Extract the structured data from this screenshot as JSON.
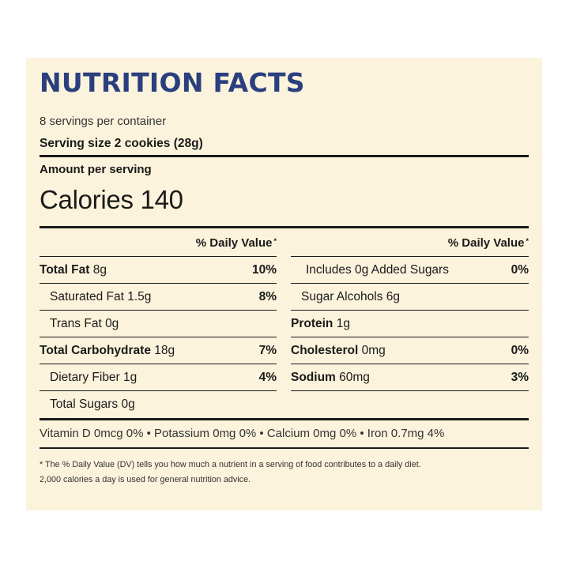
{
  "label": {
    "title": "NUTRITION FACTS",
    "servings_per_container": "8 servings per container",
    "serving_size": "Serving size 2 cookies (28g)",
    "amount_per_serving": "Amount per serving",
    "calories": "Calories 140",
    "dv_header": "% Daily Value",
    "dv_asterisk": "*",
    "left_rows": [
      {
        "name": "Total Fat",
        "amount": "8g",
        "pct": "10%"
      },
      {
        "name": "Saturated Fat",
        "amount": "1.5g",
        "pct": "8%"
      },
      {
        "name": "Trans Fat",
        "amount": "0g",
        "pct": ""
      },
      {
        "name": "Total Carbohydrate",
        "amount": "18g",
        "pct": "7%"
      },
      {
        "name": "Dietary Fiber",
        "amount": "1g",
        "pct": "4%"
      },
      {
        "name": "Total Sugars",
        "amount": "0g",
        "pct": ""
      }
    ],
    "right_rows": [
      {
        "name": "Includes 0g Added Sugars",
        "amount": "",
        "pct": "0%"
      },
      {
        "name": "Sugar Alcohols",
        "amount": "6g",
        "pct": ""
      },
      {
        "name": "Protein",
        "amount": "1g",
        "pct": ""
      },
      {
        "name": "Cholesterol",
        "amount": "0mg",
        "pct": "0%"
      },
      {
        "name": "Sodium",
        "amount": "60mg",
        "pct": "3%"
      }
    ],
    "vitamins": "Vitamin D 0mcg 0% • Potassium 0mg 0% • Calcium 0mg 0% • Iron 0.7mg 4%",
    "footnote_line1": "* The % Daily Value (DV) tells you how much a nutrient in a serving of food contributes to a daily diet.",
    "footnote_line2": "2,000 calories a day is used for general nutrition advice."
  },
  "colors": {
    "panel_background": "#fcf3dc",
    "title": "#2a3f7e",
    "text": "#1a1a1a"
  }
}
